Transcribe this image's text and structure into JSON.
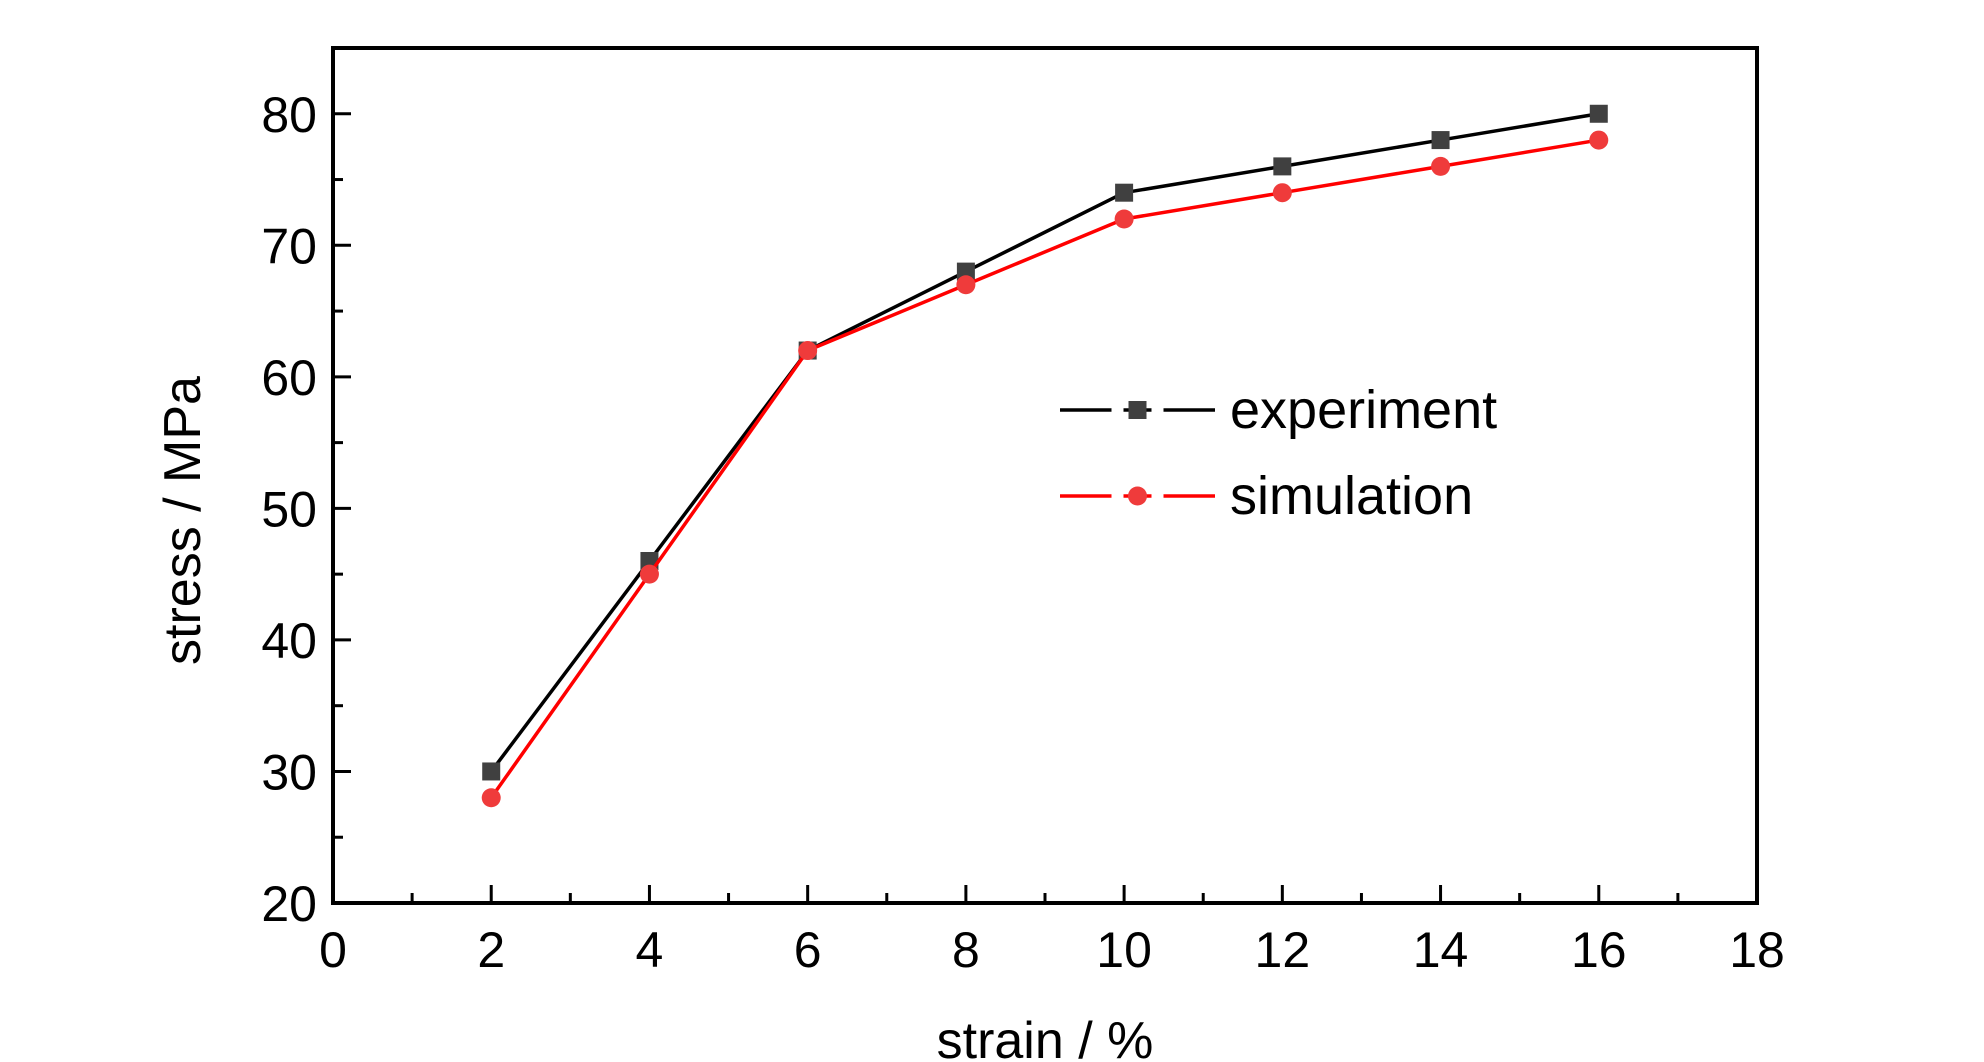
{
  "chart_data": {
    "type": "line",
    "title": "",
    "xlabel": "strain / %",
    "ylabel": "stress / MPa",
    "xlim": [
      0,
      18
    ],
    "ylim": [
      20,
      85
    ],
    "xticks": [
      0,
      2,
      4,
      6,
      8,
      10,
      12,
      14,
      16,
      18
    ],
    "yticks": [
      20,
      30,
      40,
      50,
      60,
      70,
      80
    ],
    "grid": false,
    "legend_position": "center-right",
    "series": [
      {
        "name": "experiment",
        "color": "#000000",
        "marker_color": "#404040",
        "marker": "square",
        "x": [
          2,
          4,
          6,
          8,
          10,
          12,
          14,
          16
        ],
        "y": [
          30,
          46,
          62,
          68,
          74,
          76,
          78,
          80
        ]
      },
      {
        "name": "simulation",
        "color": "#ff0000",
        "marker_color": "#ef3b3b",
        "marker": "circle",
        "x": [
          2,
          4,
          6,
          8,
          10,
          12,
          14,
          16
        ],
        "y": [
          28,
          45,
          62,
          67,
          72,
          74,
          76,
          78
        ]
      }
    ]
  }
}
